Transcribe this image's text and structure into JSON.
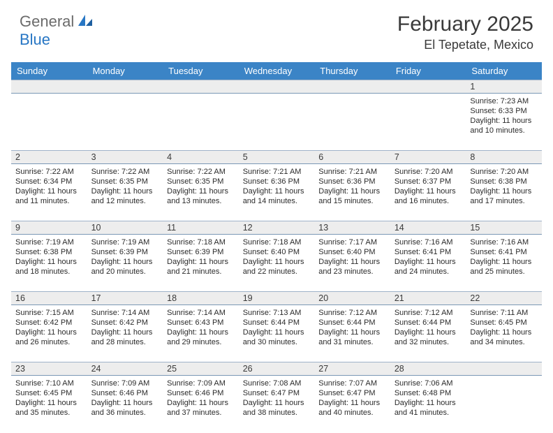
{
  "logo": {
    "part1": "General",
    "part2": "Blue"
  },
  "title": "February 2025",
  "location": "El Tepetate, Mexico",
  "colors": {
    "header_bar": "#3b84c6",
    "daynum_bg": "#ededed",
    "rule": "#7a98b5",
    "logo_blue": "#2776c4",
    "logo_gray": "#6b6b6b"
  },
  "day_headers": [
    "Sunday",
    "Monday",
    "Tuesday",
    "Wednesday",
    "Thursday",
    "Friday",
    "Saturday"
  ],
  "weeks": [
    [
      {
        "n": "",
        "sr": "",
        "ss": "",
        "dl1": "",
        "dl2": ""
      },
      {
        "n": "",
        "sr": "",
        "ss": "",
        "dl1": "",
        "dl2": ""
      },
      {
        "n": "",
        "sr": "",
        "ss": "",
        "dl1": "",
        "dl2": ""
      },
      {
        "n": "",
        "sr": "",
        "ss": "",
        "dl1": "",
        "dl2": ""
      },
      {
        "n": "",
        "sr": "",
        "ss": "",
        "dl1": "",
        "dl2": ""
      },
      {
        "n": "",
        "sr": "",
        "ss": "",
        "dl1": "",
        "dl2": ""
      },
      {
        "n": "1",
        "sr": "Sunrise: 7:23 AM",
        "ss": "Sunset: 6:33 PM",
        "dl1": "Daylight: 11 hours",
        "dl2": "and 10 minutes."
      }
    ],
    [
      {
        "n": "2",
        "sr": "Sunrise: 7:22 AM",
        "ss": "Sunset: 6:34 PM",
        "dl1": "Daylight: 11 hours",
        "dl2": "and 11 minutes."
      },
      {
        "n": "3",
        "sr": "Sunrise: 7:22 AM",
        "ss": "Sunset: 6:35 PM",
        "dl1": "Daylight: 11 hours",
        "dl2": "and 12 minutes."
      },
      {
        "n": "4",
        "sr": "Sunrise: 7:22 AM",
        "ss": "Sunset: 6:35 PM",
        "dl1": "Daylight: 11 hours",
        "dl2": "and 13 minutes."
      },
      {
        "n": "5",
        "sr": "Sunrise: 7:21 AM",
        "ss": "Sunset: 6:36 PM",
        "dl1": "Daylight: 11 hours",
        "dl2": "and 14 minutes."
      },
      {
        "n": "6",
        "sr": "Sunrise: 7:21 AM",
        "ss": "Sunset: 6:36 PM",
        "dl1": "Daylight: 11 hours",
        "dl2": "and 15 minutes."
      },
      {
        "n": "7",
        "sr": "Sunrise: 7:20 AM",
        "ss": "Sunset: 6:37 PM",
        "dl1": "Daylight: 11 hours",
        "dl2": "and 16 minutes."
      },
      {
        "n": "8",
        "sr": "Sunrise: 7:20 AM",
        "ss": "Sunset: 6:38 PM",
        "dl1": "Daylight: 11 hours",
        "dl2": "and 17 minutes."
      }
    ],
    [
      {
        "n": "9",
        "sr": "Sunrise: 7:19 AM",
        "ss": "Sunset: 6:38 PM",
        "dl1": "Daylight: 11 hours",
        "dl2": "and 18 minutes."
      },
      {
        "n": "10",
        "sr": "Sunrise: 7:19 AM",
        "ss": "Sunset: 6:39 PM",
        "dl1": "Daylight: 11 hours",
        "dl2": "and 20 minutes."
      },
      {
        "n": "11",
        "sr": "Sunrise: 7:18 AM",
        "ss": "Sunset: 6:39 PM",
        "dl1": "Daylight: 11 hours",
        "dl2": "and 21 minutes."
      },
      {
        "n": "12",
        "sr": "Sunrise: 7:18 AM",
        "ss": "Sunset: 6:40 PM",
        "dl1": "Daylight: 11 hours",
        "dl2": "and 22 minutes."
      },
      {
        "n": "13",
        "sr": "Sunrise: 7:17 AM",
        "ss": "Sunset: 6:40 PM",
        "dl1": "Daylight: 11 hours",
        "dl2": "and 23 minutes."
      },
      {
        "n": "14",
        "sr": "Sunrise: 7:16 AM",
        "ss": "Sunset: 6:41 PM",
        "dl1": "Daylight: 11 hours",
        "dl2": "and 24 minutes."
      },
      {
        "n": "15",
        "sr": "Sunrise: 7:16 AM",
        "ss": "Sunset: 6:41 PM",
        "dl1": "Daylight: 11 hours",
        "dl2": "and 25 minutes."
      }
    ],
    [
      {
        "n": "16",
        "sr": "Sunrise: 7:15 AM",
        "ss": "Sunset: 6:42 PM",
        "dl1": "Daylight: 11 hours",
        "dl2": "and 26 minutes."
      },
      {
        "n": "17",
        "sr": "Sunrise: 7:14 AM",
        "ss": "Sunset: 6:42 PM",
        "dl1": "Daylight: 11 hours",
        "dl2": "and 28 minutes."
      },
      {
        "n": "18",
        "sr": "Sunrise: 7:14 AM",
        "ss": "Sunset: 6:43 PM",
        "dl1": "Daylight: 11 hours",
        "dl2": "and 29 minutes."
      },
      {
        "n": "19",
        "sr": "Sunrise: 7:13 AM",
        "ss": "Sunset: 6:44 PM",
        "dl1": "Daylight: 11 hours",
        "dl2": "and 30 minutes."
      },
      {
        "n": "20",
        "sr": "Sunrise: 7:12 AM",
        "ss": "Sunset: 6:44 PM",
        "dl1": "Daylight: 11 hours",
        "dl2": "and 31 minutes."
      },
      {
        "n": "21",
        "sr": "Sunrise: 7:12 AM",
        "ss": "Sunset: 6:44 PM",
        "dl1": "Daylight: 11 hours",
        "dl2": "and 32 minutes."
      },
      {
        "n": "22",
        "sr": "Sunrise: 7:11 AM",
        "ss": "Sunset: 6:45 PM",
        "dl1": "Daylight: 11 hours",
        "dl2": "and 34 minutes."
      }
    ],
    [
      {
        "n": "23",
        "sr": "Sunrise: 7:10 AM",
        "ss": "Sunset: 6:45 PM",
        "dl1": "Daylight: 11 hours",
        "dl2": "and 35 minutes."
      },
      {
        "n": "24",
        "sr": "Sunrise: 7:09 AM",
        "ss": "Sunset: 6:46 PM",
        "dl1": "Daylight: 11 hours",
        "dl2": "and 36 minutes."
      },
      {
        "n": "25",
        "sr": "Sunrise: 7:09 AM",
        "ss": "Sunset: 6:46 PM",
        "dl1": "Daylight: 11 hours",
        "dl2": "and 37 minutes."
      },
      {
        "n": "26",
        "sr": "Sunrise: 7:08 AM",
        "ss": "Sunset: 6:47 PM",
        "dl1": "Daylight: 11 hours",
        "dl2": "and 38 minutes."
      },
      {
        "n": "27",
        "sr": "Sunrise: 7:07 AM",
        "ss": "Sunset: 6:47 PM",
        "dl1": "Daylight: 11 hours",
        "dl2": "and 40 minutes."
      },
      {
        "n": "28",
        "sr": "Sunrise: 7:06 AM",
        "ss": "Sunset: 6:48 PM",
        "dl1": "Daylight: 11 hours",
        "dl2": "and 41 minutes."
      },
      {
        "n": "",
        "sr": "",
        "ss": "",
        "dl1": "",
        "dl2": ""
      }
    ]
  ]
}
